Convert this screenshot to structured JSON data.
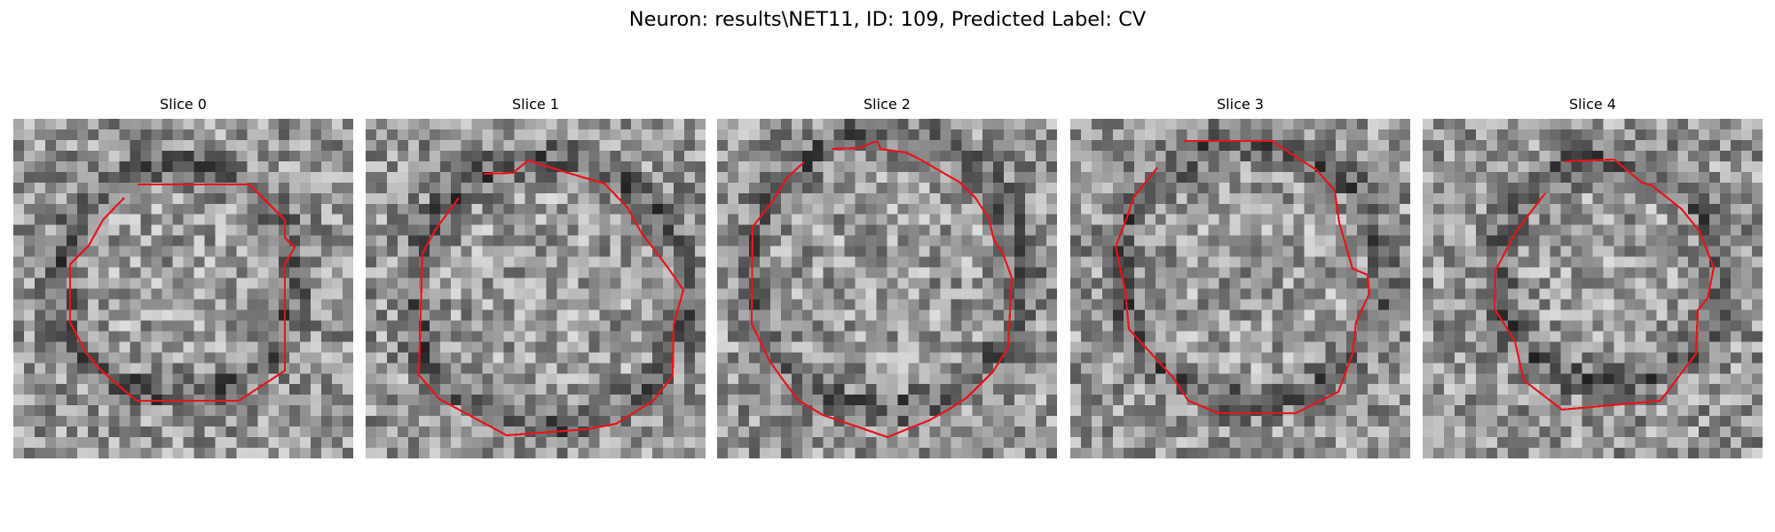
{
  "figure": {
    "title": "Neuron: results\\NET11, ID: 109, Predicted Label: CV"
  },
  "panels": [
    {
      "title": "Slice 0",
      "background_brightness": "medium",
      "darker_ring": true,
      "contour_color": "#e8141c"
    },
    {
      "title": "Slice 1",
      "background_brightness": "medium",
      "darker_ring": true,
      "contour_color": "#e8141c"
    },
    {
      "title": "Slice 2",
      "background_brightness": "medium",
      "darker_ring": true,
      "contour_color": "#e8141c"
    },
    {
      "title": "Slice 3",
      "background_brightness": "medium",
      "darker_ring": true,
      "contour_color": "#e8141c"
    },
    {
      "title": "Slice 4",
      "background_brightness": "medium",
      "darker_ring": true,
      "contour_color": "#e8141c"
    }
  ]
}
